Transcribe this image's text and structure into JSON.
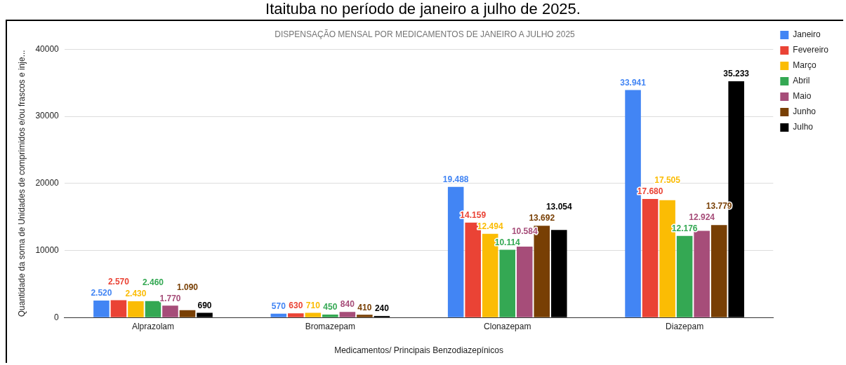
{
  "chart_data": {
    "type": "bar",
    "title": "DISPENSAÇÃO MENSAL POR MEDICAMENTOS DE JANEIRO A JULHO 2025",
    "annotations": [
      "Itaituba no período de janeiro a julho de 2025."
    ],
    "xlabel": "Medicamentos/ Principais Benzodiazepínicos",
    "ylabel": "Quantidade da soma de Unidades de comprimidos e/ou frascos e inje...",
    "categories": [
      "Alprazolam",
      "Bromazepam",
      "Clonazepam",
      "Diazepam"
    ],
    "series": [
      {
        "name": "Janeiro",
        "color": "#4285f4",
        "values": [
          2520,
          570,
          19488,
          33941
        ],
        "value_labels": [
          "2.520",
          "570",
          "19.488",
          "33.941"
        ]
      },
      {
        "name": "Fevereiro",
        "color": "#ea4335",
        "values": [
          2570,
          630,
          14159,
          17680
        ],
        "value_labels": [
          "2.570",
          "630",
          "14.159",
          "17.680"
        ]
      },
      {
        "name": "Março",
        "color": "#fbbc04",
        "values": [
          2430,
          710,
          12494,
          17505
        ],
        "value_labels": [
          "2.430",
          "710",
          "12.494",
          "17.505"
        ]
      },
      {
        "name": "Abril",
        "color": "#34a853",
        "values": [
          2460,
          450,
          10114,
          12176
        ],
        "value_labels": [
          "2.460",
          "450",
          "10.114",
          "12.176"
        ]
      },
      {
        "name": "Maio",
        "color": "#a64d79",
        "values": [
          1770,
          840,
          10584,
          12924
        ],
        "value_labels": [
          "1.770",
          "840",
          "10.584",
          "12.924"
        ]
      },
      {
        "name": "Junho",
        "color": "#783f04",
        "values": [
          1090,
          410,
          13692,
          13779
        ],
        "value_labels": [
          "1.090",
          "410",
          "13.692",
          "13.779"
        ]
      },
      {
        "name": "Julho",
        "color": "#000000",
        "values": [
          690,
          240,
          13054,
          35233
        ],
        "value_labels": [
          "690",
          "240",
          "13.054",
          "35.233"
        ]
      }
    ],
    "ylim": [
      0,
      40000
    ],
    "yticks": [
      0,
      10000,
      20000,
      30000,
      40000
    ],
    "grid": "y",
    "legend": "top right"
  }
}
